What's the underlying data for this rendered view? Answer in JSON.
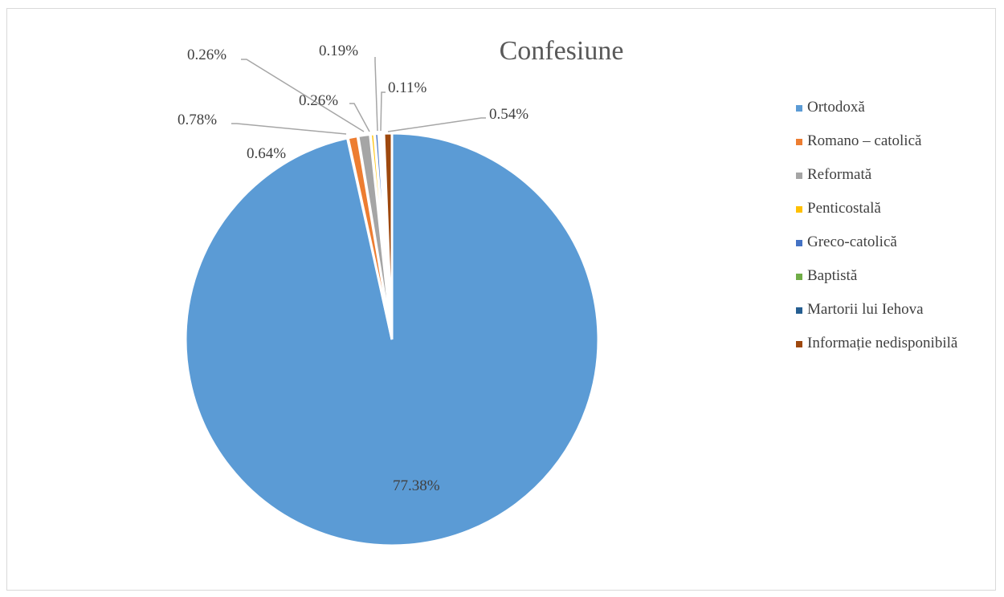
{
  "chart_data": {
    "type": "pie",
    "title": "Confesiune",
    "legend_position": "right",
    "categories": [
      "Ortodoxă",
      "Romano – catolică",
      "Reformată",
      "Penticostală",
      "Greco-catolică",
      "Baptistă",
      "Martorii lui Iehova",
      "Informație nedisponibilă"
    ],
    "colors": [
      "#5B9BD5",
      "#ED7D31",
      "#A5A5A5",
      "#FFC000",
      "#4472C4",
      "#70AD47",
      "#255E91",
      "#9E480E"
    ],
    "slices": [
      {
        "category": "Ortodoxă",
        "value": 77.38,
        "label": "77.38%",
        "color": "#5B9BD5"
      },
      {
        "category": "Romano – catolică",
        "value": 0.64,
        "label": "0.64%",
        "color": "#ED7D31"
      },
      {
        "category": "Reformată",
        "value": 0.78,
        "label": "0.78%",
        "color": "#A5A5A5"
      },
      {
        "category": "Penticostală",
        "value": 0.26,
        "label": "0.26%",
        "color": "#FFC000"
      },
      {
        "category": "Greco-catolică",
        "value": 0.26,
        "label": "0.26%",
        "color": "#4472C4"
      },
      {
        "category": "Baptistă",
        "value": 0.19,
        "label": "0.19%",
        "color": "#70AD47"
      },
      {
        "category": "Martorii lui Iehova",
        "value": 0.11,
        "label": "0.11%",
        "color": "#255E91"
      },
      {
        "category": "Informație nedisponibilă",
        "value": 0.54,
        "label": "0.54%",
        "color": "#9E480E"
      }
    ]
  }
}
